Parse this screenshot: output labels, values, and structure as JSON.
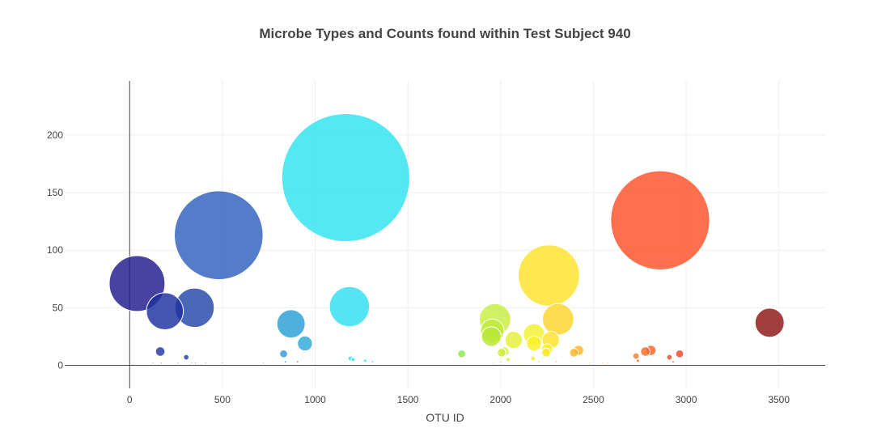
{
  "chart_data": {
    "type": "scatter",
    "variant": "bubble",
    "title": "Microbe Types and Counts found within Test Subject 940",
    "xlabel": "OTU ID",
    "ylabel": "",
    "xlim": [
      -350,
      3750
    ],
    "ylim": [
      -20,
      247
    ],
    "xticks": [
      0,
      500,
      1000,
      1500,
      2000,
      2500,
      3000,
      3500
    ],
    "xtick_labels": [
      "0",
      "500",
      "1000",
      "1500",
      "2000",
      "2500",
      "3000",
      "3500"
    ],
    "yticks": [
      0,
      50,
      100,
      150,
      200
    ],
    "ytick_labels": [
      "0",
      "50",
      "100",
      "150",
      "200"
    ],
    "grid": true,
    "legend": "none",
    "colorscale": "Jet",
    "marker_size": "proportional to count",
    "points": [
      {
        "x": 40,
        "y": 71,
        "color": "#1e1a8c"
      },
      {
        "x": 190,
        "y": 47,
        "color": "#1c2fa0"
      },
      {
        "x": 350,
        "y": 50,
        "color": "#2346a8"
      },
      {
        "x": 480,
        "y": 113,
        "color": "#2f5fbc"
      },
      {
        "x": 165,
        "y": 12,
        "color": "#2636a2"
      },
      {
        "x": 305,
        "y": 7,
        "color": "#2640a6"
      },
      {
        "x": 870,
        "y": 36,
        "color": "#2a9fd6"
      },
      {
        "x": 945,
        "y": 19,
        "color": "#2ea8da"
      },
      {
        "x": 830,
        "y": 10,
        "color": "#2c9cd6"
      },
      {
        "x": 1165,
        "y": 163,
        "color": "#2ee3f0"
      },
      {
        "x": 1185,
        "y": 51,
        "color": "#2edff0"
      },
      {
        "x": 1190,
        "y": 6,
        "color": "#33dbee"
      },
      {
        "x": 1790,
        "y": 10,
        "color": "#8ae64a"
      },
      {
        "x": 1970,
        "y": 40,
        "color": "#c6ee42"
      },
      {
        "x": 1955,
        "y": 30,
        "color": "#bfea3a"
      },
      {
        "x": 1950,
        "y": 25,
        "color": "#b8e634"
      },
      {
        "x": 2020,
        "y": 12,
        "color": "#d6f03a"
      },
      {
        "x": 2005,
        "y": 11,
        "color": "#cfee38"
      },
      {
        "x": 2070,
        "y": 22,
        "color": "#e4f038"
      },
      {
        "x": 2180,
        "y": 27,
        "color": "#f4f22c"
      },
      {
        "x": 2180,
        "y": 19,
        "color": "#f8f022"
      },
      {
        "x": 2250,
        "y": 14,
        "color": "#fbee20"
      },
      {
        "x": 2245,
        "y": 11,
        "color": "#fbe820"
      },
      {
        "x": 2270,
        "y": 22,
        "color": "#fce428"
      },
      {
        "x": 2260,
        "y": 78,
        "color": "#ffe22a"
      },
      {
        "x": 2310,
        "y": 40,
        "color": "#fcd42a"
      },
      {
        "x": 2420,
        "y": 13,
        "color": "#fcb424"
      },
      {
        "x": 2395,
        "y": 11,
        "color": "#fcb424"
      },
      {
        "x": 2730,
        "y": 8,
        "color": "#fa7a28"
      },
      {
        "x": 2780,
        "y": 12,
        "color": "#f86a26"
      },
      {
        "x": 2810,
        "y": 13,
        "color": "#f5622a"
      },
      {
        "x": 2860,
        "y": 126,
        "color": "#fd5126"
      },
      {
        "x": 2910,
        "y": 7,
        "color": "#f04a26"
      },
      {
        "x": 2965,
        "y": 10,
        "color": "#ee4428"
      },
      {
        "x": 3450,
        "y": 37,
        "color": "#8c1414"
      },
      {
        "x": 2175,
        "y": 6,
        "color": "#f6f030"
      },
      {
        "x": 2040,
        "y": 5,
        "color": "#d4ee40"
      },
      {
        "x": 2740,
        "y": 4,
        "color": "#f46e26"
      },
      {
        "x": 1205,
        "y": 5,
        "color": "#34dcef"
      },
      {
        "x": 1270,
        "y": 4,
        "color": "#38d8ee"
      },
      {
        "x": 1310,
        "y": 3,
        "color": "#38d8ee"
      },
      {
        "x": 2205,
        "y": 3,
        "color": "#f6ea20"
      },
      {
        "x": 2550,
        "y": 2,
        "color": "#fca028"
      },
      {
        "x": 2580,
        "y": 2,
        "color": "#fca028"
      },
      {
        "x": 2930,
        "y": 3,
        "color": "#e63e28"
      },
      {
        "x": 2300,
        "y": 3,
        "color": "#fcd82a"
      },
      {
        "x": 2480,
        "y": 2,
        "color": "#fcac24"
      },
      {
        "x": 905,
        "y": 3,
        "color": "#2ca4d8"
      },
      {
        "x": 840,
        "y": 3,
        "color": "#2c9cd6"
      },
      {
        "x": 720,
        "y": 2,
        "color": "#2c88cc"
      },
      {
        "x": 500,
        "y": 2,
        "color": "#2f5fbc"
      },
      {
        "x": 410,
        "y": 2,
        "color": "#2750b0"
      },
      {
        "x": 355,
        "y": 2,
        "color": "#2746a8"
      },
      {
        "x": 335,
        "y": 2,
        "color": "#2746a8"
      },
      {
        "x": 260,
        "y": 2,
        "color": "#223ca4"
      },
      {
        "x": 170,
        "y": 2,
        "color": "#1f32a0"
      },
      {
        "x": 125,
        "y": 2,
        "color": "#1e2c9c"
      },
      {
        "x": 1960,
        "y": 2,
        "color": "#bfe83c"
      },
      {
        "x": 2000,
        "y": 3,
        "color": "#c8ec3c"
      },
      {
        "x": 2100,
        "y": 2,
        "color": "#e0f036"
      }
    ]
  }
}
